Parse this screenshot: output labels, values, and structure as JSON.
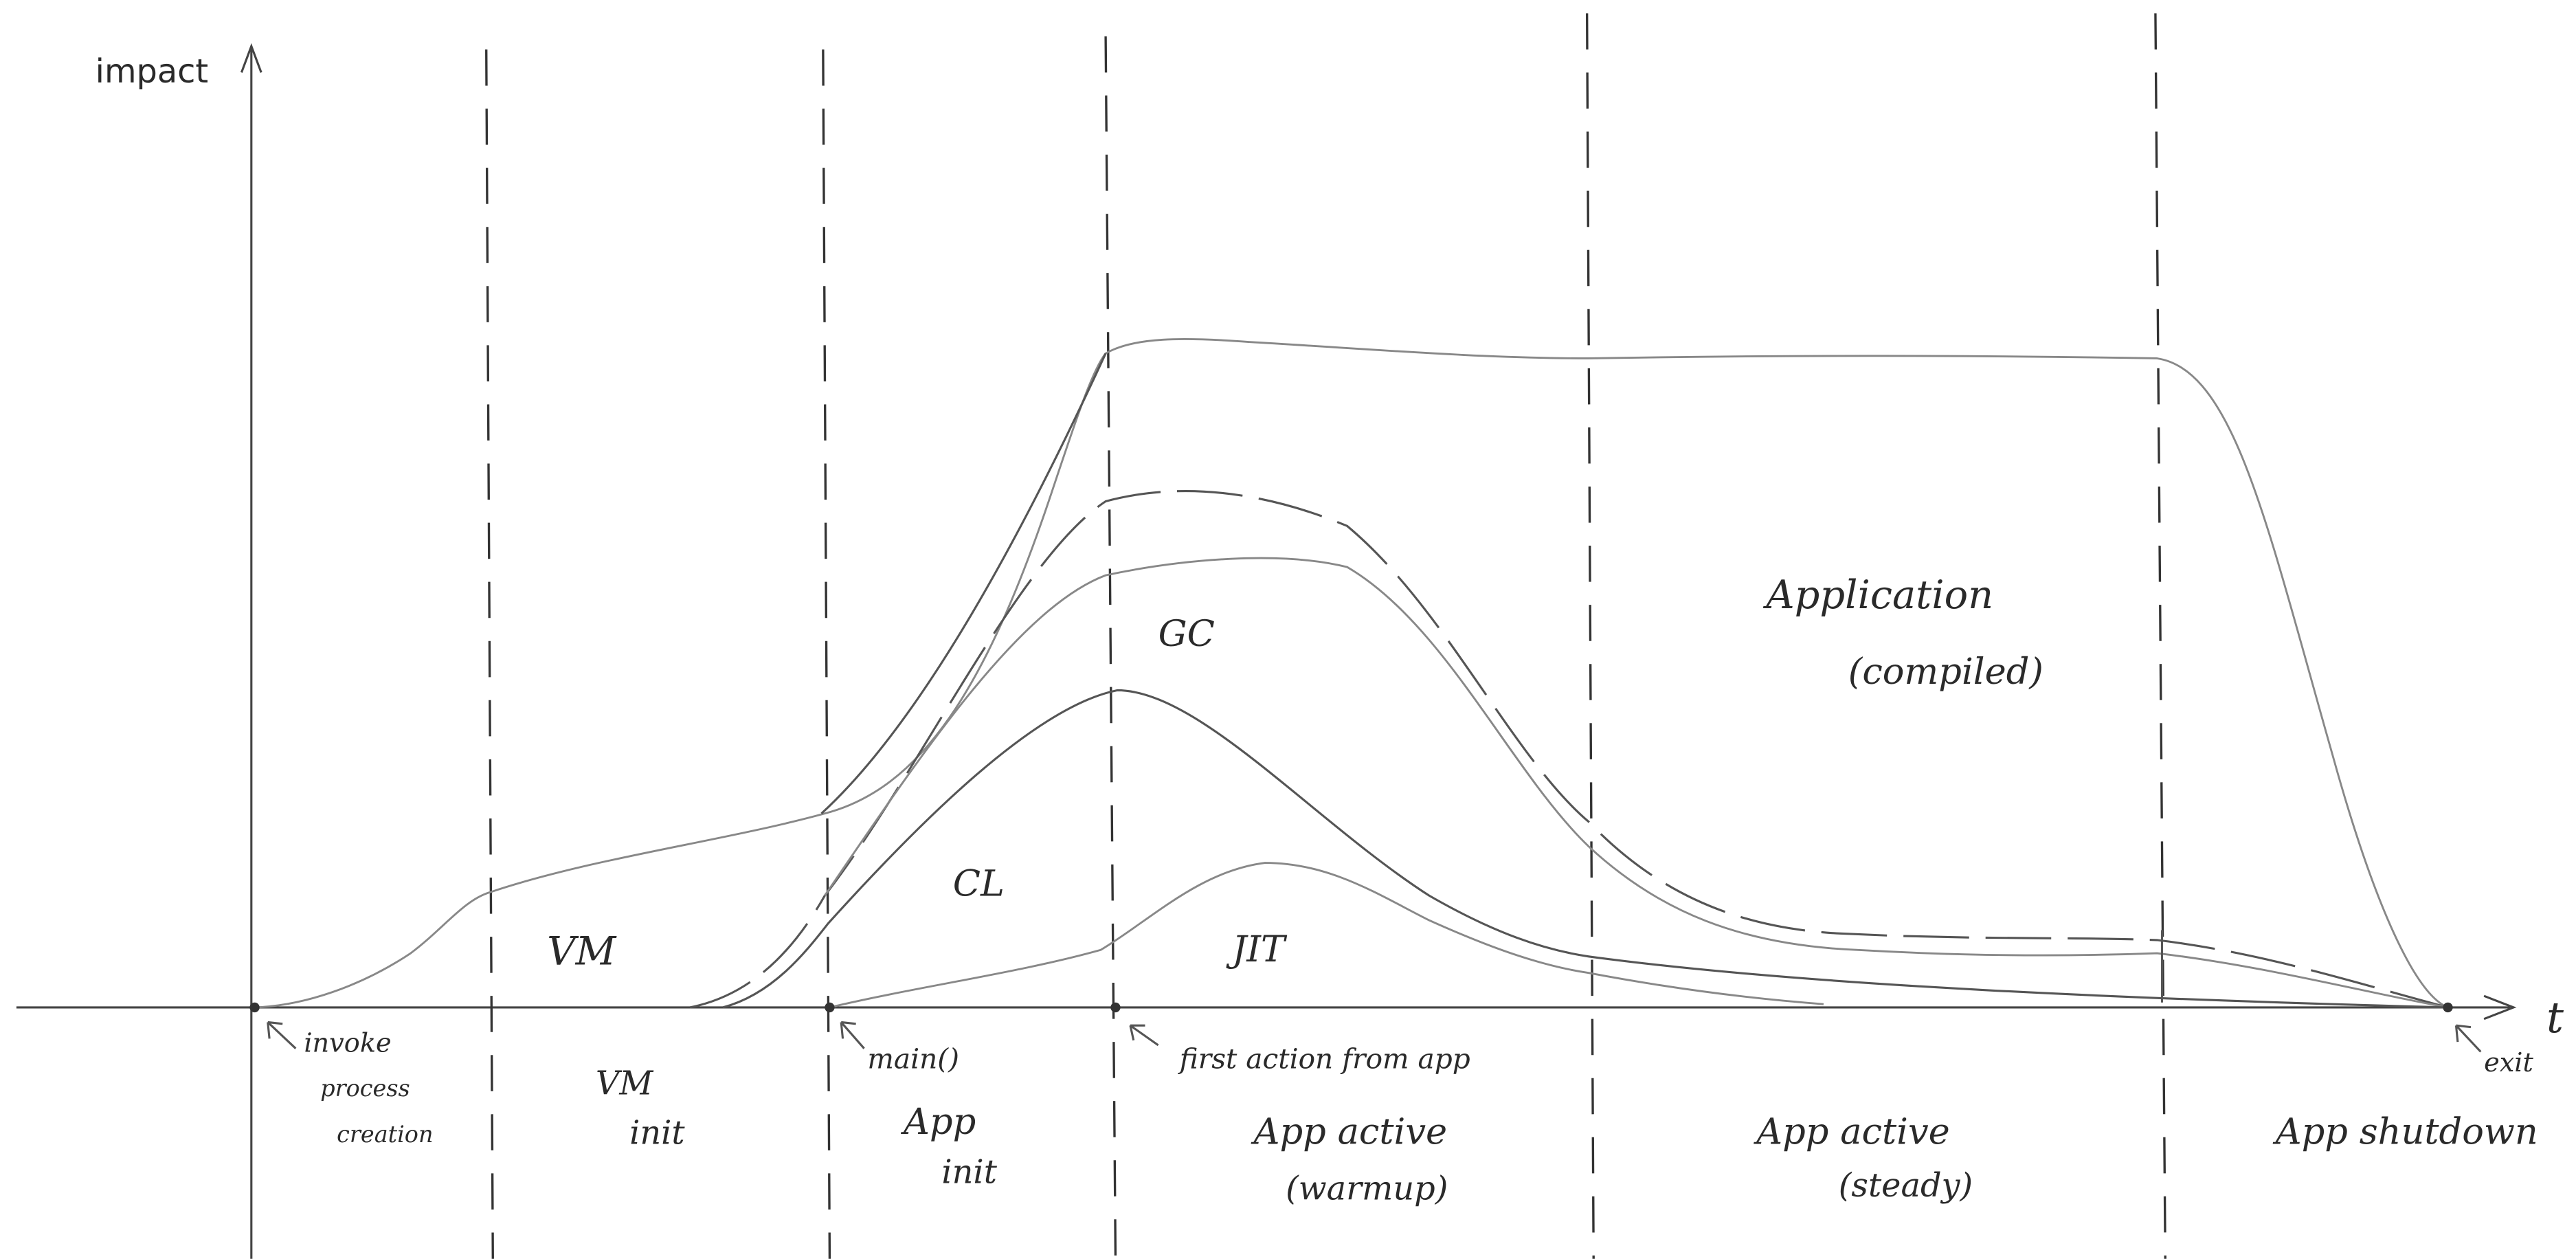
{
  "axes": {
    "y_label": "impact",
    "x_label": "t"
  },
  "regions": [
    "VM",
    "CL",
    "GC",
    "JIT"
  ],
  "application": [
    "Application",
    "(compiled)"
  ],
  "events": [
    {
      "lines": [
        "invoke",
        "process",
        "creation"
      ]
    },
    {
      "lines": [
        "main()"
      ]
    },
    {
      "lines": [
        "first action from app"
      ]
    },
    {
      "lines": [
        "exit"
      ]
    }
  ],
  "phases": [
    {
      "lines": [
        "VM",
        "init"
      ]
    },
    {
      "lines": [
        "App",
        "init"
      ]
    },
    {
      "lines": [
        "App active",
        "(warmup)"
      ]
    },
    {
      "lines": [
        "App active",
        "(steady)"
      ]
    },
    {
      "lines": [
        "App shutdown"
      ]
    }
  ]
}
